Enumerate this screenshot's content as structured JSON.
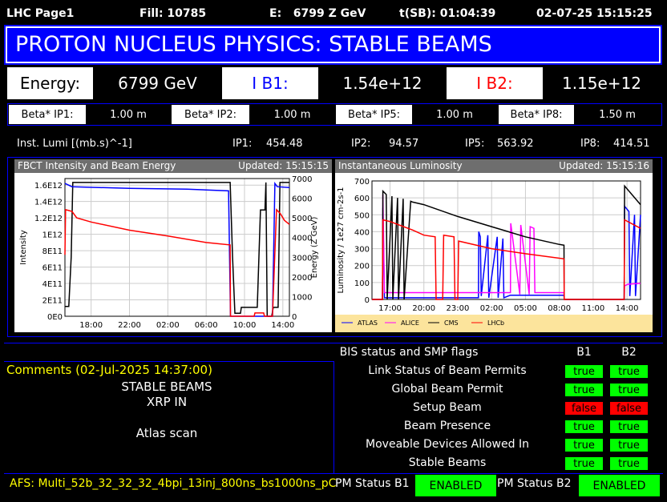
{
  "header": {
    "page": "LHC Page1",
    "fill": "Fill: 10785",
    "energy": "E:   6799 Z GeV",
    "tsb": "t(SB): 01:04:39",
    "datetime": "02-07-25 15:15:25"
  },
  "banner": "PROTON NUCLEUS PHYSICS: STABLE BEAMS",
  "summary": {
    "energy_label": "Energy:",
    "energy_value": "6799 GeV",
    "ib1_label": "I B1:",
    "ib1_value": "1.54e+12",
    "ib2_label": "I B2:",
    "ib2_value": "1.15e+12"
  },
  "beta": [
    {
      "label": "Beta* IP1:",
      "value": "1.00 m"
    },
    {
      "label": "Beta* IP2:",
      "value": "1.00 m"
    },
    {
      "label": "Beta* IP5:",
      "value": "1.00 m"
    },
    {
      "label": "Beta* IP8:",
      "value": "1.50 m"
    }
  ],
  "lumi": {
    "label": "Inst. Lumi [(mb.s)^-1]",
    "ip": [
      {
        "label": "IP1:",
        "value": "454.48"
      },
      {
        "label": "IP2:",
        "value": "94.57"
      },
      {
        "label": "IP5:",
        "value": "563.92"
      },
      {
        "label": "IP8:",
        "value": "414.51"
      }
    ]
  },
  "colors": {
    "b1": "#0000ff",
    "b2": "#ff0000",
    "banner": "#0000ff",
    "ok": "#00ff00",
    "bad": "#ff0000",
    "comment": "#ffff00"
  },
  "chart_data": [
    {
      "type": "line",
      "title": "FBCT Intensity and Beam Energy",
      "updated": "Updated: 15:15:15",
      "ylabel": "Intensity",
      "y2label": "Energy (Z GeV)",
      "ylim": [
        0,
        1680000000000.0
      ],
      "y2lim": [
        0,
        7000
      ],
      "xlim": [
        "15:16",
        "14:41"
      ],
      "xticks": [
        "18:00",
        "22:00",
        "02:00",
        "06:00",
        "10:00",
        "14:00"
      ],
      "yticks": [
        "0E0",
        "2E11",
        "4E11",
        "6E11",
        "8E11",
        "1E12",
        "1.2E12",
        "1.4E12",
        "1.6E12"
      ],
      "y2ticks": [
        "0",
        "1000",
        "2000",
        "3000",
        "4000",
        "5000",
        "6000",
        "7000"
      ],
      "grid": true,
      "series": [
        {
          "color": "#000000",
          "axis": "right",
          "points": [
            [
              "15:16",
              500
            ],
            [
              "15:40",
              500
            ],
            [
              "15:55",
              3000
            ],
            [
              "16:05",
              6800
            ],
            [
              "08:30",
              6800
            ],
            [
              "08:45",
              3000
            ],
            [
              "09:00",
              150
            ],
            [
              "09:35",
              150
            ],
            [
              "09:40",
              450
            ],
            [
              "11:20",
              450
            ],
            [
              "11:40",
              5400
            ],
            [
              "12:08",
              5400
            ],
            [
              "12:14",
              6800
            ],
            [
              "12:22",
              0
            ],
            [
              "12:50",
              0
            ],
            [
              "13:00",
              450
            ],
            [
              "13:30",
              450
            ],
            [
              "13:42",
              6800
            ],
            [
              "14:41",
              6800
            ]
          ]
        },
        {
          "color": "#0000ff",
          "axis": "left",
          "points": [
            [
              "15:16",
              1620000000000.0
            ],
            [
              "16:00",
              1580000000000.0
            ],
            [
              "22:00",
              1560000000000.0
            ],
            [
              "04:00",
              1550000000000.0
            ],
            [
              "08:20",
              1530000000000.0
            ],
            [
              "08:32",
              0
            ],
            [
              "12:55",
              0
            ],
            [
              "13:10",
              1620000000000.0
            ],
            [
              "13:25",
              1580000000000.0
            ],
            [
              "14:41",
              1570000000000.0
            ]
          ]
        },
        {
          "color": "#ff0000",
          "axis": "left",
          "points": [
            [
              "15:16",
              750000000000.0
            ],
            [
              "15:20",
              1300000000000.0
            ],
            [
              "16:00",
              1280000000000.0
            ],
            [
              "16:30",
              1200000000000.0
            ],
            [
              "18:00",
              1150000000000.0
            ],
            [
              "22:00",
              1050000000000.0
            ],
            [
              "02:00",
              980000000000.0
            ],
            [
              "06:00",
              900000000000.0
            ],
            [
              "08:30",
              870000000000.0
            ],
            [
              "08:32",
              0
            ],
            [
              "11:00",
              0
            ],
            [
              "11:05",
              40000000000.0
            ],
            [
              "12:00",
              40000000000.0
            ],
            [
              "12:05",
              0
            ],
            [
              "12:55",
              0
            ],
            [
              "13:20",
              1300000000000.0
            ],
            [
              "13:45",
              1250000000000.0
            ],
            [
              "14:10",
              1170000000000.0
            ],
            [
              "14:41",
              1120000000000.0
            ]
          ]
        }
      ]
    },
    {
      "type": "line",
      "title": "Instantaneous Luminosity",
      "updated": "Updated: 15:15:16",
      "ylabel": "Luminosity / 1e27 cm-2s-1",
      "ylim": [
        0,
        700
      ],
      "xlim": [
        "15:24",
        "15:12"
      ],
      "xticks": [
        "17:00",
        "20:00",
        "23:00",
        "02:00",
        "05:00",
        "08:00",
        "11:00",
        "14:00"
      ],
      "yticks": [
        "0",
        "100",
        "200",
        "300",
        "400",
        "500",
        "600",
        "700"
      ],
      "grid": true,
      "legend": "bottom",
      "series": [
        {
          "name": "ATLAS",
          "color": "#0000ff",
          "points": [
            [
              "15:24",
              0
            ],
            [
              "16:20",
              0
            ],
            [
              "16:22",
              540
            ],
            [
              "16:30",
              10
            ],
            [
              "00:50",
              10
            ],
            [
              "00:52",
              400
            ],
            [
              "01:00",
              370
            ],
            [
              "01:05",
              20
            ],
            [
              "01:40",
              380
            ],
            [
              "01:45",
              10
            ],
            [
              "02:30",
              370
            ],
            [
              "02:35",
              10
            ],
            [
              "03:00",
              360
            ],
            [
              "03:05",
              10
            ],
            [
              "03:40",
              25
            ],
            [
              "08:25",
              25
            ],
            [
              "08:26",
              0
            ],
            [
              "13:45",
              0
            ],
            [
              "13:47",
              550
            ],
            [
              "14:10",
              520
            ],
            [
              "14:15",
              20
            ],
            [
              "14:40",
              500
            ],
            [
              "14:45",
              20
            ],
            [
              "15:12",
              500
            ]
          ]
        },
        {
          "name": "ALICE",
          "color": "#ff00ff",
          "points": [
            [
              "15:24",
              0
            ],
            [
              "16:20",
              0
            ],
            [
              "16:22",
              620
            ],
            [
              "16:30",
              40
            ],
            [
              "03:40",
              40
            ],
            [
              "03:42",
              450
            ],
            [
              "04:30",
              30
            ],
            [
              "04:35",
              440
            ],
            [
              "05:20",
              30
            ],
            [
              "05:25",
              430
            ],
            [
              "05:45",
              420
            ],
            [
              "05:50",
              40
            ],
            [
              "08:25",
              40
            ],
            [
              "08:26",
              0
            ],
            [
              "13:45",
              0
            ],
            [
              "13:47",
              80
            ],
            [
              "14:05",
              90
            ],
            [
              "15:12",
              95
            ]
          ]
        },
        {
          "name": "CMS",
          "color": "#000000",
          "points": [
            [
              "15:24",
              0
            ],
            [
              "16:20",
              0
            ],
            [
              "16:22",
              640
            ],
            [
              "16:40",
              620
            ],
            [
              "16:45",
              0
            ],
            [
              "17:10",
              610
            ],
            [
              "17:15",
              0
            ],
            [
              "17:40",
              600
            ],
            [
              "17:45",
              0
            ],
            [
              "18:10",
              595
            ],
            [
              "18:15",
              0
            ],
            [
              "18:50",
              580
            ],
            [
              "19:00",
              575
            ],
            [
              "20:00",
              560
            ],
            [
              "23:00",
              490
            ],
            [
              "02:00",
              430
            ],
            [
              "05:00",
              370
            ],
            [
              "08:00",
              325
            ],
            [
              "08:25",
              320
            ],
            [
              "08:26",
              0
            ],
            [
              "13:45",
              0
            ],
            [
              "13:47",
              670
            ],
            [
              "15:12",
              560
            ]
          ]
        },
        {
          "name": "LHCb",
          "color": "#ff0000",
          "points": [
            [
              "15:24",
              0
            ],
            [
              "16:20",
              0
            ],
            [
              "16:22",
              470
            ],
            [
              "17:00",
              460
            ],
            [
              "19:00",
              410
            ],
            [
              "20:00",
              380
            ],
            [
              "21:00",
              370
            ],
            [
              "21:05",
              0
            ],
            [
              "21:40",
              0
            ],
            [
              "21:45",
              380
            ],
            [
              "22:40",
              370
            ],
            [
              "22:45",
              0
            ],
            [
              "23:00",
              0
            ],
            [
              "23:05",
              345
            ],
            [
              "02:00",
              300
            ],
            [
              "05:00",
              270
            ],
            [
              "08:25",
              240
            ],
            [
              "08:26",
              0
            ],
            [
              "13:45",
              0
            ],
            [
              "13:47",
              470
            ],
            [
              "15:12",
              420
            ]
          ]
        }
      ]
    }
  ],
  "comments": {
    "title": "Comments (02-Jul-2025 14:37:00)",
    "lines": [
      "STABLE BEAMS",
      "XRP IN",
      "Atlas scan"
    ]
  },
  "flags": {
    "title": "BIS status and SMP flags",
    "b1": "B1",
    "b2": "B2",
    "rows": [
      {
        "label": "Link Status of Beam Permits",
        "b1": "true",
        "b2": "true"
      },
      {
        "label": "Global Beam Permit",
        "b1": "true",
        "b2": "true"
      },
      {
        "label": "Setup Beam",
        "b1": "false",
        "b2": "false"
      },
      {
        "label": "Beam Presence",
        "b1": "true",
        "b2": "true"
      },
      {
        "label": "Moveable Devices Allowed In",
        "b1": "true",
        "b2": "true"
      },
      {
        "label": "Stable Beams",
        "b1": "true",
        "b2": "true"
      }
    ]
  },
  "footer": {
    "afs": "AFS: Multi_52b_32_32_32_4bpi_13inj_800ns_bs1000ns_pC",
    "pm_b1_label": "PM Status B1",
    "pm_b1": "ENABLED",
    "pm_b2_label": "PM Status B2",
    "pm_b2": "ENABLED"
  }
}
